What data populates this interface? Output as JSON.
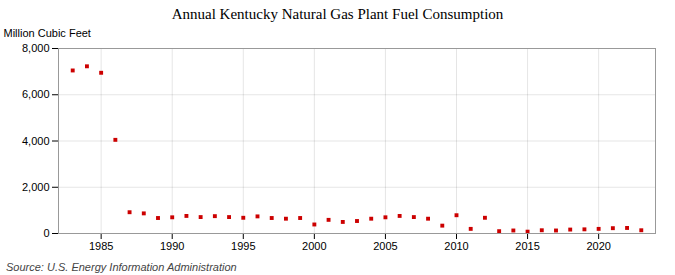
{
  "chart_data": {
    "type": "scatter",
    "title": "Annual Kentucky Natural Gas Plant Fuel Consumption",
    "ylabel": "Million Cubic Feet",
    "annotations": [
      "Source: U.S. Energy Information Administration"
    ],
    "x": [
      1983,
      1984,
      1985,
      1986,
      1987,
      1988,
      1989,
      1990,
      1991,
      1992,
      1993,
      1994,
      1995,
      1996,
      1997,
      1998,
      1999,
      2000,
      2001,
      2002,
      2003,
      2004,
      2005,
      2006,
      2007,
      2008,
      2009,
      2010,
      2011,
      2012,
      2013,
      2014,
      2015,
      2016,
      2017,
      2018,
      2019,
      2020,
      2021,
      2022,
      2023
    ],
    "values": [
      7050,
      7230,
      6950,
      4050,
      920,
      870,
      670,
      700,
      760,
      710,
      750,
      710,
      680,
      740,
      670,
      640,
      670,
      390,
      590,
      500,
      540,
      640,
      700,
      760,
      710,
      640,
      340,
      790,
      200,
      680,
      100,
      130,
      80,
      140,
      130,
      170,
      180,
      200,
      230,
      240,
      140
    ],
    "color": "#cc0000",
    "marker": "square",
    "grid": true,
    "xlim": [
      1982.0,
      2024.0
    ],
    "xticks": [
      1985,
      1990,
      1995,
      2000,
      2005,
      2010,
      2015,
      2020
    ],
    "ylim": [
      0,
      8000
    ],
    "yticks": [
      0,
      {
        "value": 2000,
        "label": "2,000"
      },
      {
        "value": 4000,
        "label": "4,000"
      },
      {
        "value": 6000,
        "label": "6,000"
      },
      {
        "value": 8000,
        "label": "8,000"
      }
    ]
  }
}
